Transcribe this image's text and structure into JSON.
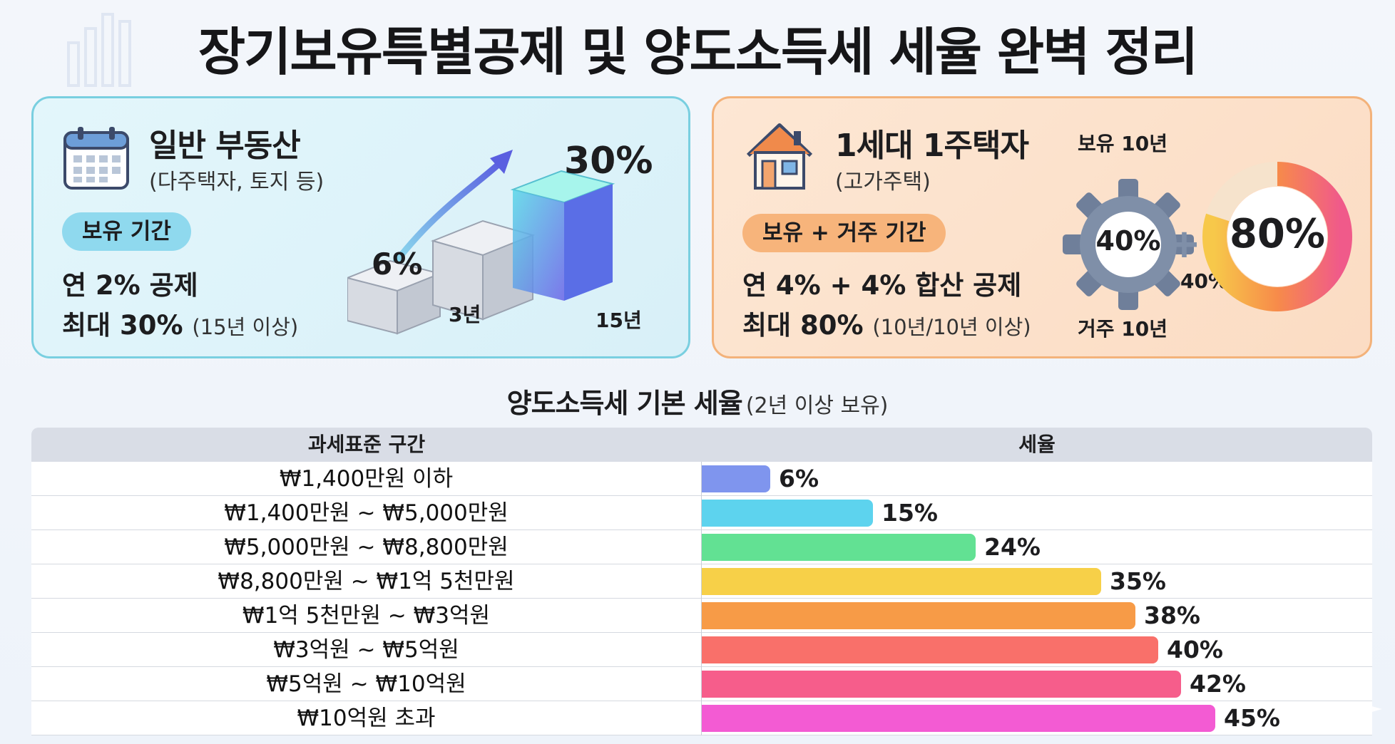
{
  "title": "장기보유특별공제 및 양도소득세 세율 완벽 정리",
  "general": {
    "title": "일반 부동산",
    "subtitle": "(다주택자, 토지 등)",
    "pill": "보유 기간",
    "line1": "연 2% 공제",
    "line2_bold": "최대 30%",
    "line2_note": "(15년 이상)",
    "stat_start": "6%",
    "stat_end": "30%",
    "label_start": "3년",
    "label_end": "15년"
  },
  "single": {
    "title": "1세대 1주택자",
    "subtitle": "(고가주택)",
    "pill": "보유 + 거주 기간",
    "line1": "연 4% + 4% 합산 공제",
    "line2_bold": "최대 80%",
    "line2_note": "(10년/10년 이상)",
    "hold_label": "보유 10년",
    "live_label": "거주 10년",
    "gear_value": "40%",
    "plus_value": "40%",
    "total_value": "80%"
  },
  "rates_section": {
    "title": "양도소득세 기본 세율",
    "note": "(2년 이상 보유)",
    "col_range": "과세표준 구간",
    "col_rate": "세율"
  },
  "chart_data": {
    "type": "bar",
    "orientation": "horizontal",
    "title": "양도소득세 기본 세율",
    "subtitle": "(2년 이상 보유)",
    "xlabel": "세율",
    "ylabel": "과세표준 구간",
    "categories": [
      "₩1,400만원 이하",
      "₩1,400만원 ~ ₩5,000만원",
      "₩5,000만원 ~ ₩8,800만원",
      "₩8,800만원 ~ ₩1억 5천만원",
      "₩1억 5천만원 ~ ₩3억원",
      "₩3억원 ~ ₩5억원",
      "₩5억원 ~ ₩10억원",
      "₩10억원 초과"
    ],
    "values": [
      6,
      15,
      24,
      35,
      38,
      40,
      42,
      45
    ],
    "labels": [
      "6%",
      "15%",
      "24%",
      "35%",
      "38%",
      "40%",
      "42%",
      "45%"
    ],
    "colors": [
      "#7f95ee",
      "#5dd3ee",
      "#62e193",
      "#f7d048",
      "#f79b47",
      "#f9706a",
      "#f65d8b",
      "#f35bd3"
    ],
    "xlim": [
      0,
      50
    ],
    "grid": false
  }
}
